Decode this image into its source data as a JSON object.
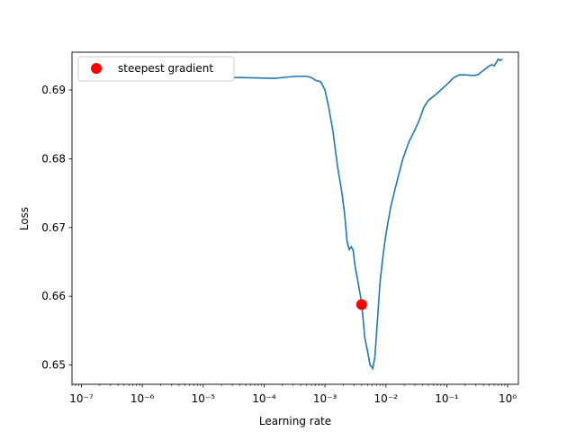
{
  "chart_data": {
    "type": "line",
    "title": "",
    "xlabel": "Learning rate",
    "ylabel": "Loss",
    "xscale": "log",
    "xlim": [
      7e-08,
      1.5
    ],
    "ylim": [
      0.6472,
      0.6955
    ],
    "grid": false,
    "legend": {
      "position": "top-left",
      "entries": [
        "steepest gradient"
      ]
    },
    "x_ticks": [
      {
        "value": 1e-07,
        "label": "10⁻⁷"
      },
      {
        "value": 1e-06,
        "label": "10⁻⁶"
      },
      {
        "value": 1e-05,
        "label": "10⁻⁵"
      },
      {
        "value": 0.0001,
        "label": "10⁻⁴"
      },
      {
        "value": 0.001,
        "label": "10⁻³"
      },
      {
        "value": 0.01,
        "label": "10⁻²"
      },
      {
        "value": 0.1,
        "label": "10⁻¹"
      },
      {
        "value": 1,
        "label": "10⁰"
      }
    ],
    "y_ticks": [
      {
        "value": 0.65,
        "label": "0.65"
      },
      {
        "value": 0.66,
        "label": "0.66"
      },
      {
        "value": 0.67,
        "label": "0.67"
      },
      {
        "value": 0.68,
        "label": "0.68"
      },
      {
        "value": 0.69,
        "label": "0.69"
      }
    ],
    "series": [
      {
        "color": "#1f77b4",
        "points": [
          [
            1.6e-07,
            0.692
          ],
          [
            1e-06,
            0.692
          ],
          [
            1e-05,
            0.6919
          ],
          [
            5e-05,
            0.6918
          ],
          [
            0.00015,
            0.6917
          ],
          [
            0.00025,
            0.6919
          ],
          [
            0.00035,
            0.692
          ],
          [
            0.0005,
            0.692
          ],
          [
            0.0006,
            0.6918
          ],
          [
            0.0007,
            0.6914
          ],
          [
            0.00085,
            0.6912
          ],
          [
            0.001,
            0.69
          ],
          [
            0.00115,
            0.6875
          ],
          [
            0.00135,
            0.684
          ],
          [
            0.0016,
            0.679
          ],
          [
            0.0019,
            0.675
          ],
          [
            0.0021,
            0.672
          ],
          [
            0.0023,
            0.668
          ],
          [
            0.0025,
            0.6668
          ],
          [
            0.0027,
            0.6672
          ],
          [
            0.0029,
            0.6667
          ],
          [
            0.0031,
            0.6645
          ],
          [
            0.0035,
            0.662
          ],
          [
            0.004,
            0.659
          ],
          [
            0.0045,
            0.654
          ],
          [
            0.005,
            0.652
          ],
          [
            0.0055,
            0.65
          ],
          [
            0.0061,
            0.6495
          ],
          [
            0.0066,
            0.6512
          ],
          [
            0.0072,
            0.656
          ],
          [
            0.008,
            0.662
          ],
          [
            0.009,
            0.666
          ],
          [
            0.01,
            0.669
          ],
          [
            0.012,
            0.673
          ],
          [
            0.015,
            0.6765
          ],
          [
            0.019,
            0.68
          ],
          [
            0.024,
            0.6825
          ],
          [
            0.03,
            0.6842
          ],
          [
            0.036,
            0.6858
          ],
          [
            0.042,
            0.6875
          ],
          [
            0.05,
            0.6885
          ],
          [
            0.065,
            0.6893
          ],
          [
            0.08,
            0.69
          ],
          [
            0.1,
            0.6908
          ],
          [
            0.13,
            0.6918
          ],
          [
            0.16,
            0.6922
          ],
          [
            0.2,
            0.6922
          ],
          [
            0.27,
            0.6921
          ],
          [
            0.32,
            0.6922
          ],
          [
            0.38,
            0.6927
          ],
          [
            0.45,
            0.6932
          ],
          [
            0.5,
            0.6935
          ],
          [
            0.55,
            0.6937
          ],
          [
            0.6,
            0.6935
          ],
          [
            0.65,
            0.694
          ],
          [
            0.7,
            0.6945
          ],
          [
            0.75,
            0.6943
          ],
          [
            0.82,
            0.6945
          ]
        ]
      }
    ],
    "marker": {
      "name": "steepest gradient",
      "x": 0.004,
      "y": 0.6588,
      "color": "#ff0000"
    }
  }
}
